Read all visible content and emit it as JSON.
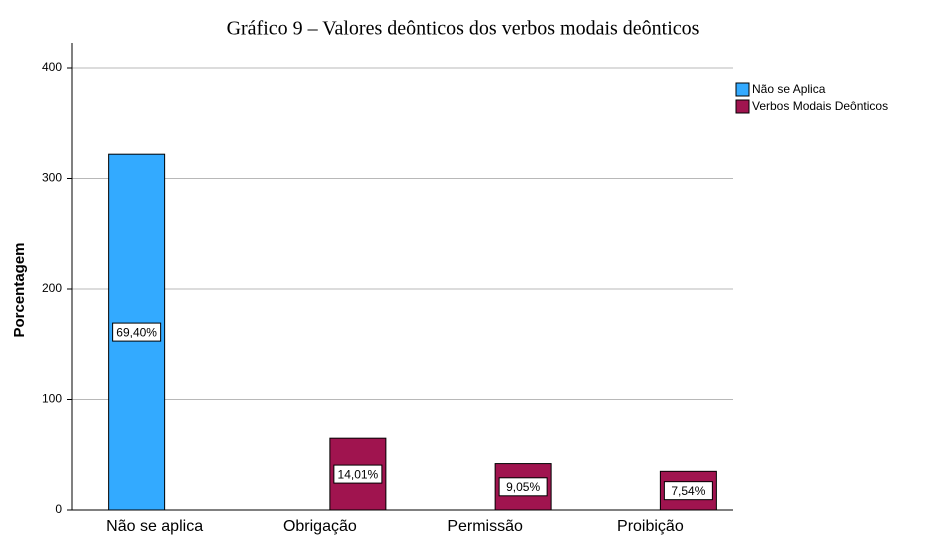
{
  "chart_data": {
    "type": "bar",
    "title": "Gráfico 9 – Valores deônticos dos verbos modais deônticos",
    "y_label": "Porcentagem",
    "categories": [
      "Não se aplica",
      "Obrigação",
      "Permissão",
      "Proibição"
    ],
    "series": [
      {
        "name": "Não se Aplica",
        "color": "#33aaff",
        "values": [
          322,
          null,
          null,
          null
        ],
        "bar_labels": [
          "69,40%",
          null,
          null,
          null
        ]
      },
      {
        "name": "Verbos Modais Deônticos",
        "color": "#a0144f",
        "values": [
          null,
          65,
          42,
          35
        ],
        "bar_labels": [
          null,
          "14,01%",
          "9,05%",
          "7,54%"
        ]
      }
    ],
    "ylim": [
      0,
      400
    ],
    "yticks": [
      0,
      100,
      200,
      300,
      400
    ],
    "grid": true,
    "legend": "top-right"
  }
}
